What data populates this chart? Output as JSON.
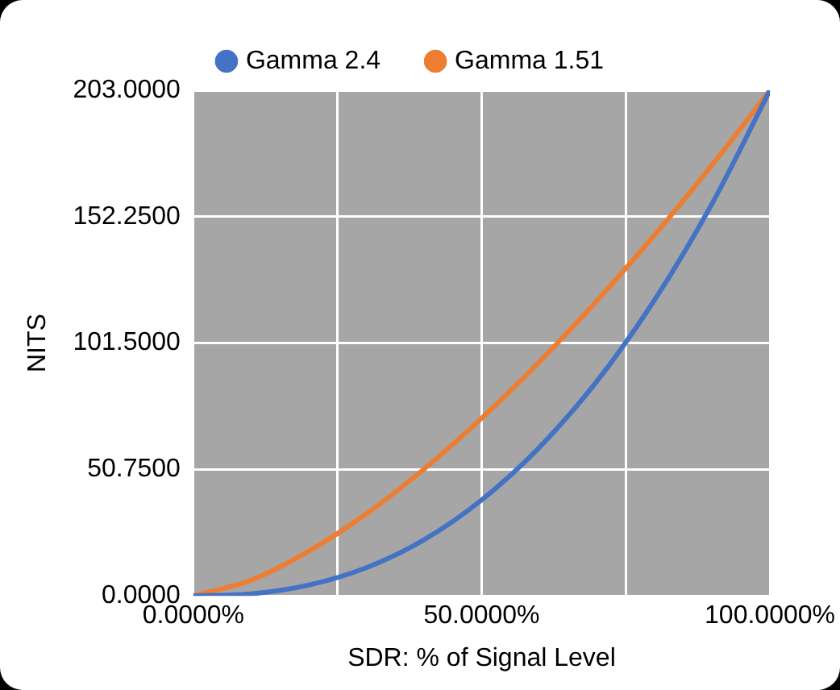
{
  "chart_data": {
    "type": "line",
    "xlabel": "SDR: % of Signal Level",
    "ylabel": "NITS",
    "x": [
      0,
      10,
      20,
      30,
      40,
      50,
      60,
      70,
      80,
      90,
      100
    ],
    "series": [
      {
        "name": "Gamma 2.4",
        "color": "#4472c4",
        "values": [
          0,
          0.8,
          4.3,
          11.3,
          22.5,
          38.5,
          59.6,
          86.2,
          118.8,
          157.6,
          203
        ]
      },
      {
        "name": "Gamma 1.51",
        "color": "#ed7d31",
        "values": [
          0,
          6.3,
          17.9,
          32.9,
          50.9,
          71.3,
          93.9,
          118.5,
          144.9,
          173.1,
          203
        ]
      }
    ],
    "xlim": [
      0,
      100
    ],
    "xticks": [
      {
        "value": 0,
        "label": "0.0000%"
      },
      {
        "value": 25,
        "label": null
      },
      {
        "value": 50,
        "label": "50.0000%"
      },
      {
        "value": 75,
        "label": null
      },
      {
        "value": 100,
        "label": "100.0000%"
      }
    ],
    "ylim": [
      0,
      203
    ],
    "yticks": [
      {
        "value": 0,
        "label": "0.0000"
      },
      {
        "value": 50.75,
        "label": "50.7500"
      },
      {
        "value": 101.5,
        "label": "101.5000"
      },
      {
        "value": 152.25,
        "label": "152.2500"
      },
      {
        "value": 203,
        "label": "203.0000"
      }
    ],
    "grid": true,
    "legend": "top",
    "marker": "none",
    "line_style": "solid"
  }
}
